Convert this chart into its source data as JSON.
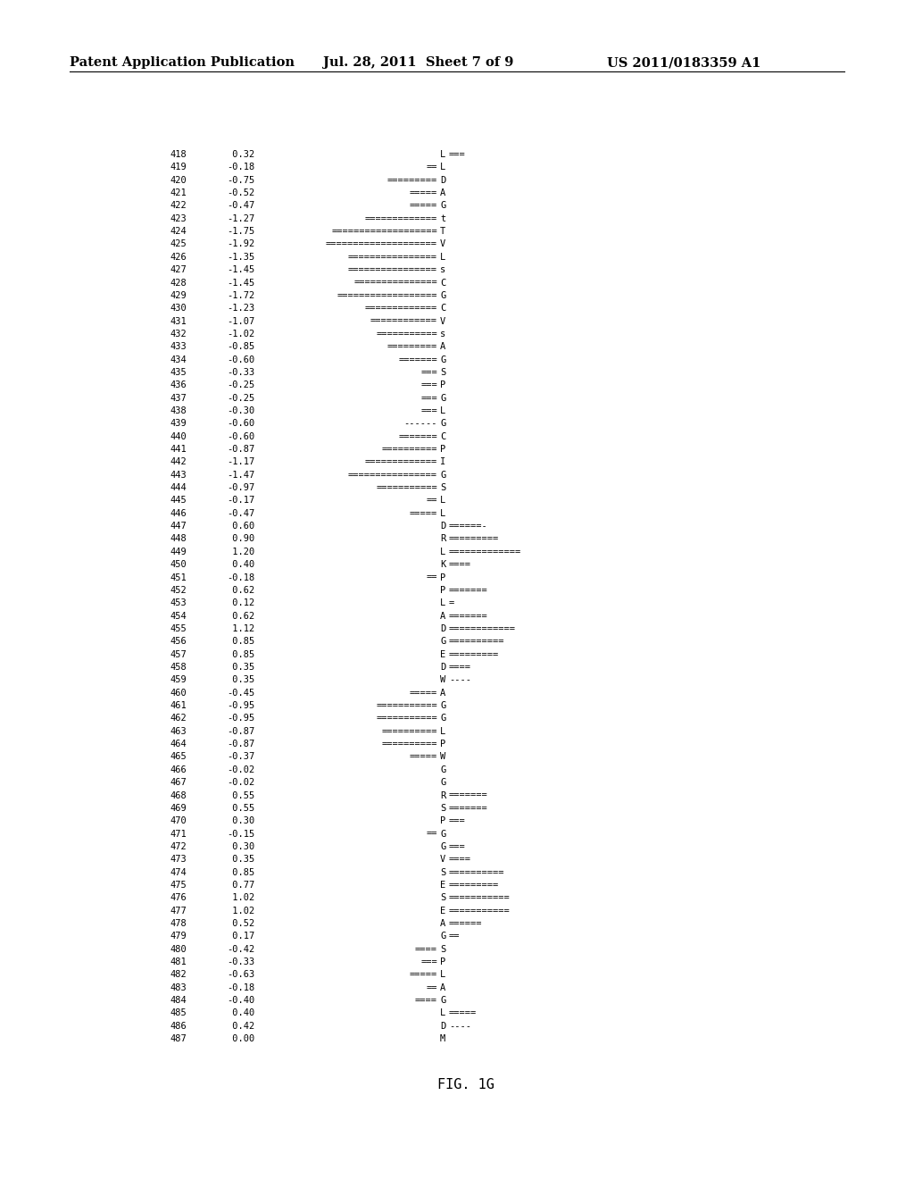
{
  "header_left": "Patent Application Publication",
  "header_mid": "Jul. 28, 2011  Sheet 7 of 9",
  "header_right": "US 2011/0183359 A1",
  "footer": "FIG. 1G",
  "rows": [
    [
      418,
      0.32,
      "L",
      "==="
    ],
    [
      419,
      -0.18,
      "L",
      "=="
    ],
    [
      420,
      -0.75,
      "D",
      "========="
    ],
    [
      421,
      -0.52,
      "A",
      "====="
    ],
    [
      422,
      -0.47,
      "G",
      "====="
    ],
    [
      423,
      -1.27,
      "t",
      "============="
    ],
    [
      424,
      -1.75,
      "T",
      "==================="
    ],
    [
      425,
      -1.92,
      "V",
      "===================="
    ],
    [
      426,
      -1.35,
      "L",
      "================"
    ],
    [
      427,
      -1.45,
      "s",
      "================"
    ],
    [
      428,
      -1.45,
      "C",
      "==============="
    ],
    [
      429,
      -1.72,
      "G",
      "=================="
    ],
    [
      430,
      -1.23,
      "C",
      "============="
    ],
    [
      431,
      -1.07,
      "V",
      "============"
    ],
    [
      432,
      -1.02,
      "s",
      "==========="
    ],
    [
      433,
      -0.85,
      "A",
      "========="
    ],
    [
      434,
      -0.6,
      "G",
      "======="
    ],
    [
      435,
      -0.33,
      "S",
      "==="
    ],
    [
      436,
      -0.25,
      "P",
      "==="
    ],
    [
      437,
      -0.25,
      "G",
      "==="
    ],
    [
      438,
      -0.3,
      "L",
      "==="
    ],
    [
      439,
      -0.6,
      "G",
      "------"
    ],
    [
      440,
      -0.6,
      "C",
      "======="
    ],
    [
      441,
      -0.87,
      "P",
      "=========="
    ],
    [
      442,
      -1.17,
      "I",
      "============="
    ],
    [
      443,
      -1.47,
      "G",
      "================"
    ],
    [
      444,
      -0.97,
      "S",
      "==========="
    ],
    [
      445,
      -0.17,
      "L",
      "=="
    ],
    [
      446,
      -0.47,
      "L",
      "====="
    ],
    [
      447,
      0.6,
      "D",
      "======-"
    ],
    [
      448,
      0.9,
      "R",
      "========="
    ],
    [
      449,
      1.2,
      "L",
      "============="
    ],
    [
      450,
      0.4,
      "K",
      "===="
    ],
    [
      451,
      -0.18,
      "P",
      "=="
    ],
    [
      452,
      0.62,
      "P",
      "======="
    ],
    [
      453,
      0.12,
      "L",
      "="
    ],
    [
      454,
      0.62,
      "A",
      "======="
    ],
    [
      455,
      1.12,
      "D",
      "============"
    ],
    [
      456,
      0.85,
      "G",
      "=========="
    ],
    [
      457,
      0.85,
      "E",
      "========="
    ],
    [
      458,
      0.35,
      "D",
      "===="
    ],
    [
      459,
      0.35,
      "W",
      "----"
    ],
    [
      460,
      -0.45,
      "A",
      "====="
    ],
    [
      461,
      -0.95,
      "G",
      "==========="
    ],
    [
      462,
      -0.95,
      "G",
      "==========="
    ],
    [
      463,
      -0.87,
      "L",
      "=========="
    ],
    [
      464,
      -0.87,
      "P",
      "=========="
    ],
    [
      465,
      -0.37,
      "W",
      "====="
    ],
    [
      466,
      -0.02,
      "G",
      ""
    ],
    [
      467,
      -0.02,
      "G",
      ""
    ],
    [
      468,
      0.55,
      "R",
      "======="
    ],
    [
      469,
      0.55,
      "S",
      "======="
    ],
    [
      470,
      0.3,
      "P",
      "==="
    ],
    [
      471,
      -0.15,
      "G",
      "=="
    ],
    [
      472,
      0.3,
      "G",
      "==="
    ],
    [
      473,
      0.35,
      "V",
      "===="
    ],
    [
      474,
      0.85,
      "S",
      "=========="
    ],
    [
      475,
      0.77,
      "E",
      "========="
    ],
    [
      476,
      1.02,
      "S",
      "==========="
    ],
    [
      477,
      1.02,
      "E",
      "==========="
    ],
    [
      478,
      0.52,
      "A",
      "======"
    ],
    [
      479,
      0.17,
      "G",
      "=="
    ],
    [
      480,
      -0.42,
      "S",
      "===="
    ],
    [
      481,
      -0.33,
      "P",
      "==="
    ],
    [
      482,
      -0.63,
      "L",
      "====="
    ],
    [
      483,
      -0.18,
      "A",
      "=="
    ],
    [
      484,
      -0.4,
      "G",
      "===="
    ],
    [
      485,
      0.4,
      "L",
      "====="
    ],
    [
      486,
      0.42,
      "D",
      "----"
    ],
    [
      487,
      0.0,
      "M",
      ""
    ]
  ]
}
